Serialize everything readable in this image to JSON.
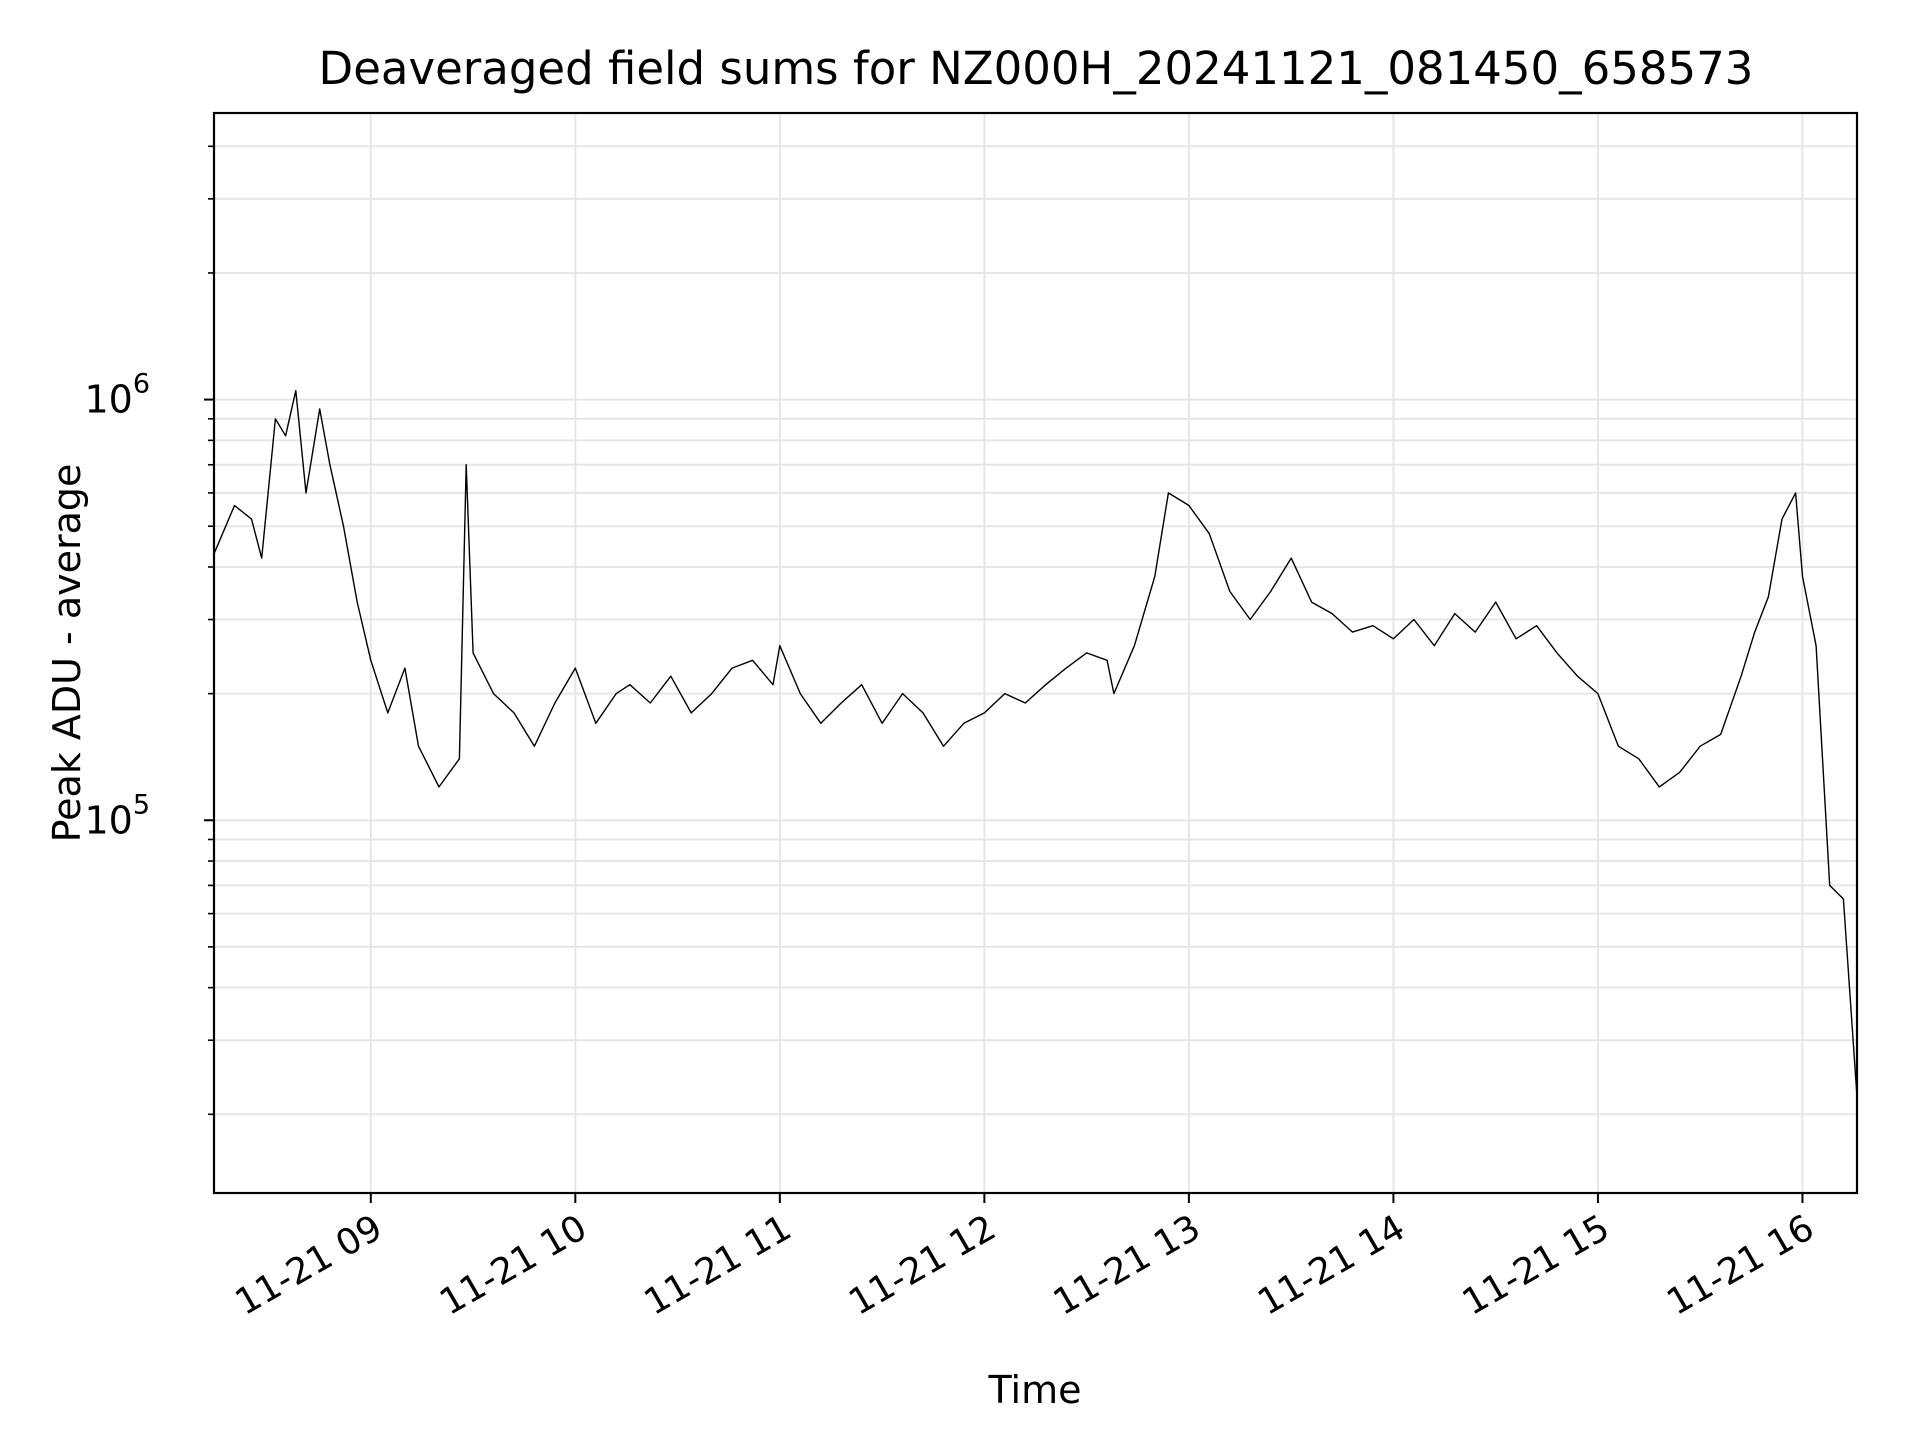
{
  "chart_data": {
    "type": "line",
    "title": "Deaveraged field sums for NZ000H_20241121_081450_658573",
    "xlabel": "Time",
    "ylabel": "Peak ADU - average",
    "y_scale": "log",
    "grid": true,
    "line_color": "#000000",
    "grid_color": "#e6e6e6",
    "xlim": [
      "2024-11-21 08:14",
      "2024-11-21 16:16"
    ],
    "ylim": [
      13000,
      4800000
    ],
    "x_ticks": [
      {
        "value": "2024-11-21 09:00",
        "label": "11-21 09"
      },
      {
        "value": "2024-11-21 10:00",
        "label": "11-21 10"
      },
      {
        "value": "2024-11-21 11:00",
        "label": "11-21 11"
      },
      {
        "value": "2024-11-21 12:00",
        "label": "11-21 12"
      },
      {
        "value": "2024-11-21 13:00",
        "label": "11-21 13"
      },
      {
        "value": "2024-11-21 14:00",
        "label": "11-21 14"
      },
      {
        "value": "2024-11-21 15:00",
        "label": "11-21 15"
      },
      {
        "value": "2024-11-21 16:00",
        "label": "11-21 16"
      }
    ],
    "y_ticks": [
      {
        "value": 100000,
        "base": "10",
        "exp": "5"
      },
      {
        "value": 1000000,
        "base": "10",
        "exp": "6"
      }
    ],
    "series": [
      {
        "x": [
          "2024-11-21 08:14",
          "2024-11-21 08:20",
          "2024-11-21 08:25",
          "2024-11-21 08:28",
          "2024-11-21 08:32",
          "2024-11-21 08:35",
          "2024-11-21 08:38",
          "2024-11-21 08:41",
          "2024-11-21 08:45",
          "2024-11-21 08:48",
          "2024-11-21 08:52",
          "2024-11-21 08:56",
          "2024-11-21 09:00",
          "2024-11-21 09:05",
          "2024-11-21 09:10",
          "2024-11-21 09:14",
          "2024-11-21 09:20",
          "2024-11-21 09:26",
          "2024-11-21 09:28",
          "2024-11-21 09:30",
          "2024-11-21 09:36",
          "2024-11-21 09:42",
          "2024-11-21 09:48",
          "2024-11-21 09:54",
          "2024-11-21 10:00",
          "2024-11-21 10:06",
          "2024-11-21 10:12",
          "2024-11-21 10:16",
          "2024-11-21 10:22",
          "2024-11-21 10:28",
          "2024-11-21 10:34",
          "2024-11-21 10:40",
          "2024-11-21 10:46",
          "2024-11-21 10:52",
          "2024-11-21 10:58",
          "2024-11-21 11:00",
          "2024-11-21 11:06",
          "2024-11-21 11:12",
          "2024-11-21 11:18",
          "2024-11-21 11:24",
          "2024-11-21 11:30",
          "2024-11-21 11:36",
          "2024-11-21 11:42",
          "2024-11-21 11:48",
          "2024-11-21 11:54",
          "2024-11-21 12:00",
          "2024-11-21 12:06",
          "2024-11-21 12:12",
          "2024-11-21 12:18",
          "2024-11-21 12:24",
          "2024-11-21 12:30",
          "2024-11-21 12:36",
          "2024-11-21 12:38",
          "2024-11-21 12:44",
          "2024-11-21 12:50",
          "2024-11-21 12:54",
          "2024-11-21 13:00",
          "2024-11-21 13:06",
          "2024-11-21 13:12",
          "2024-11-21 13:18",
          "2024-11-21 13:24",
          "2024-11-21 13:30",
          "2024-11-21 13:36",
          "2024-11-21 13:42",
          "2024-11-21 13:48",
          "2024-11-21 13:54",
          "2024-11-21 14:00",
          "2024-11-21 14:06",
          "2024-11-21 14:12",
          "2024-11-21 14:18",
          "2024-11-21 14:24",
          "2024-11-21 14:30",
          "2024-11-21 14:36",
          "2024-11-21 14:42",
          "2024-11-21 14:48",
          "2024-11-21 14:54",
          "2024-11-21 15:00",
          "2024-11-21 15:06",
          "2024-11-21 15:12",
          "2024-11-21 15:18",
          "2024-11-21 15:24",
          "2024-11-21 15:30",
          "2024-11-21 15:36",
          "2024-11-21 15:42",
          "2024-11-21 15:46",
          "2024-11-21 15:50",
          "2024-11-21 15:54",
          "2024-11-21 15:58",
          "2024-11-21 16:00",
          "2024-11-21 16:04",
          "2024-11-21 16:08",
          "2024-11-21 16:12",
          "2024-11-21 16:16"
        ],
        "y": [
          430000,
          560000,
          520000,
          420000,
          900000,
          820000,
          1050000,
          600000,
          950000,
          700000,
          500000,
          330000,
          240000,
          180000,
          230000,
          150000,
          120000,
          140000,
          700000,
          250000,
          200000,
          180000,
          150000,
          190000,
          230000,
          170000,
          200000,
          210000,
          190000,
          220000,
          180000,
          200000,
          230000,
          240000,
          210000,
          260000,
          200000,
          170000,
          190000,
          210000,
          170000,
          200000,
          180000,
          150000,
          170000,
          180000,
          200000,
          190000,
          210000,
          230000,
          250000,
          240000,
          200000,
          260000,
          380000,
          600000,
          560000,
          480000,
          350000,
          300000,
          350000,
          420000,
          330000,
          310000,
          280000,
          290000,
          270000,
          300000,
          260000,
          310000,
          280000,
          330000,
          270000,
          290000,
          250000,
          220000,
          200000,
          150000,
          140000,
          120000,
          130000,
          150000,
          160000,
          220000,
          280000,
          340000,
          520000,
          600000,
          380000,
          260000,
          70000,
          65000,
          22000
        ]
      }
    ]
  }
}
